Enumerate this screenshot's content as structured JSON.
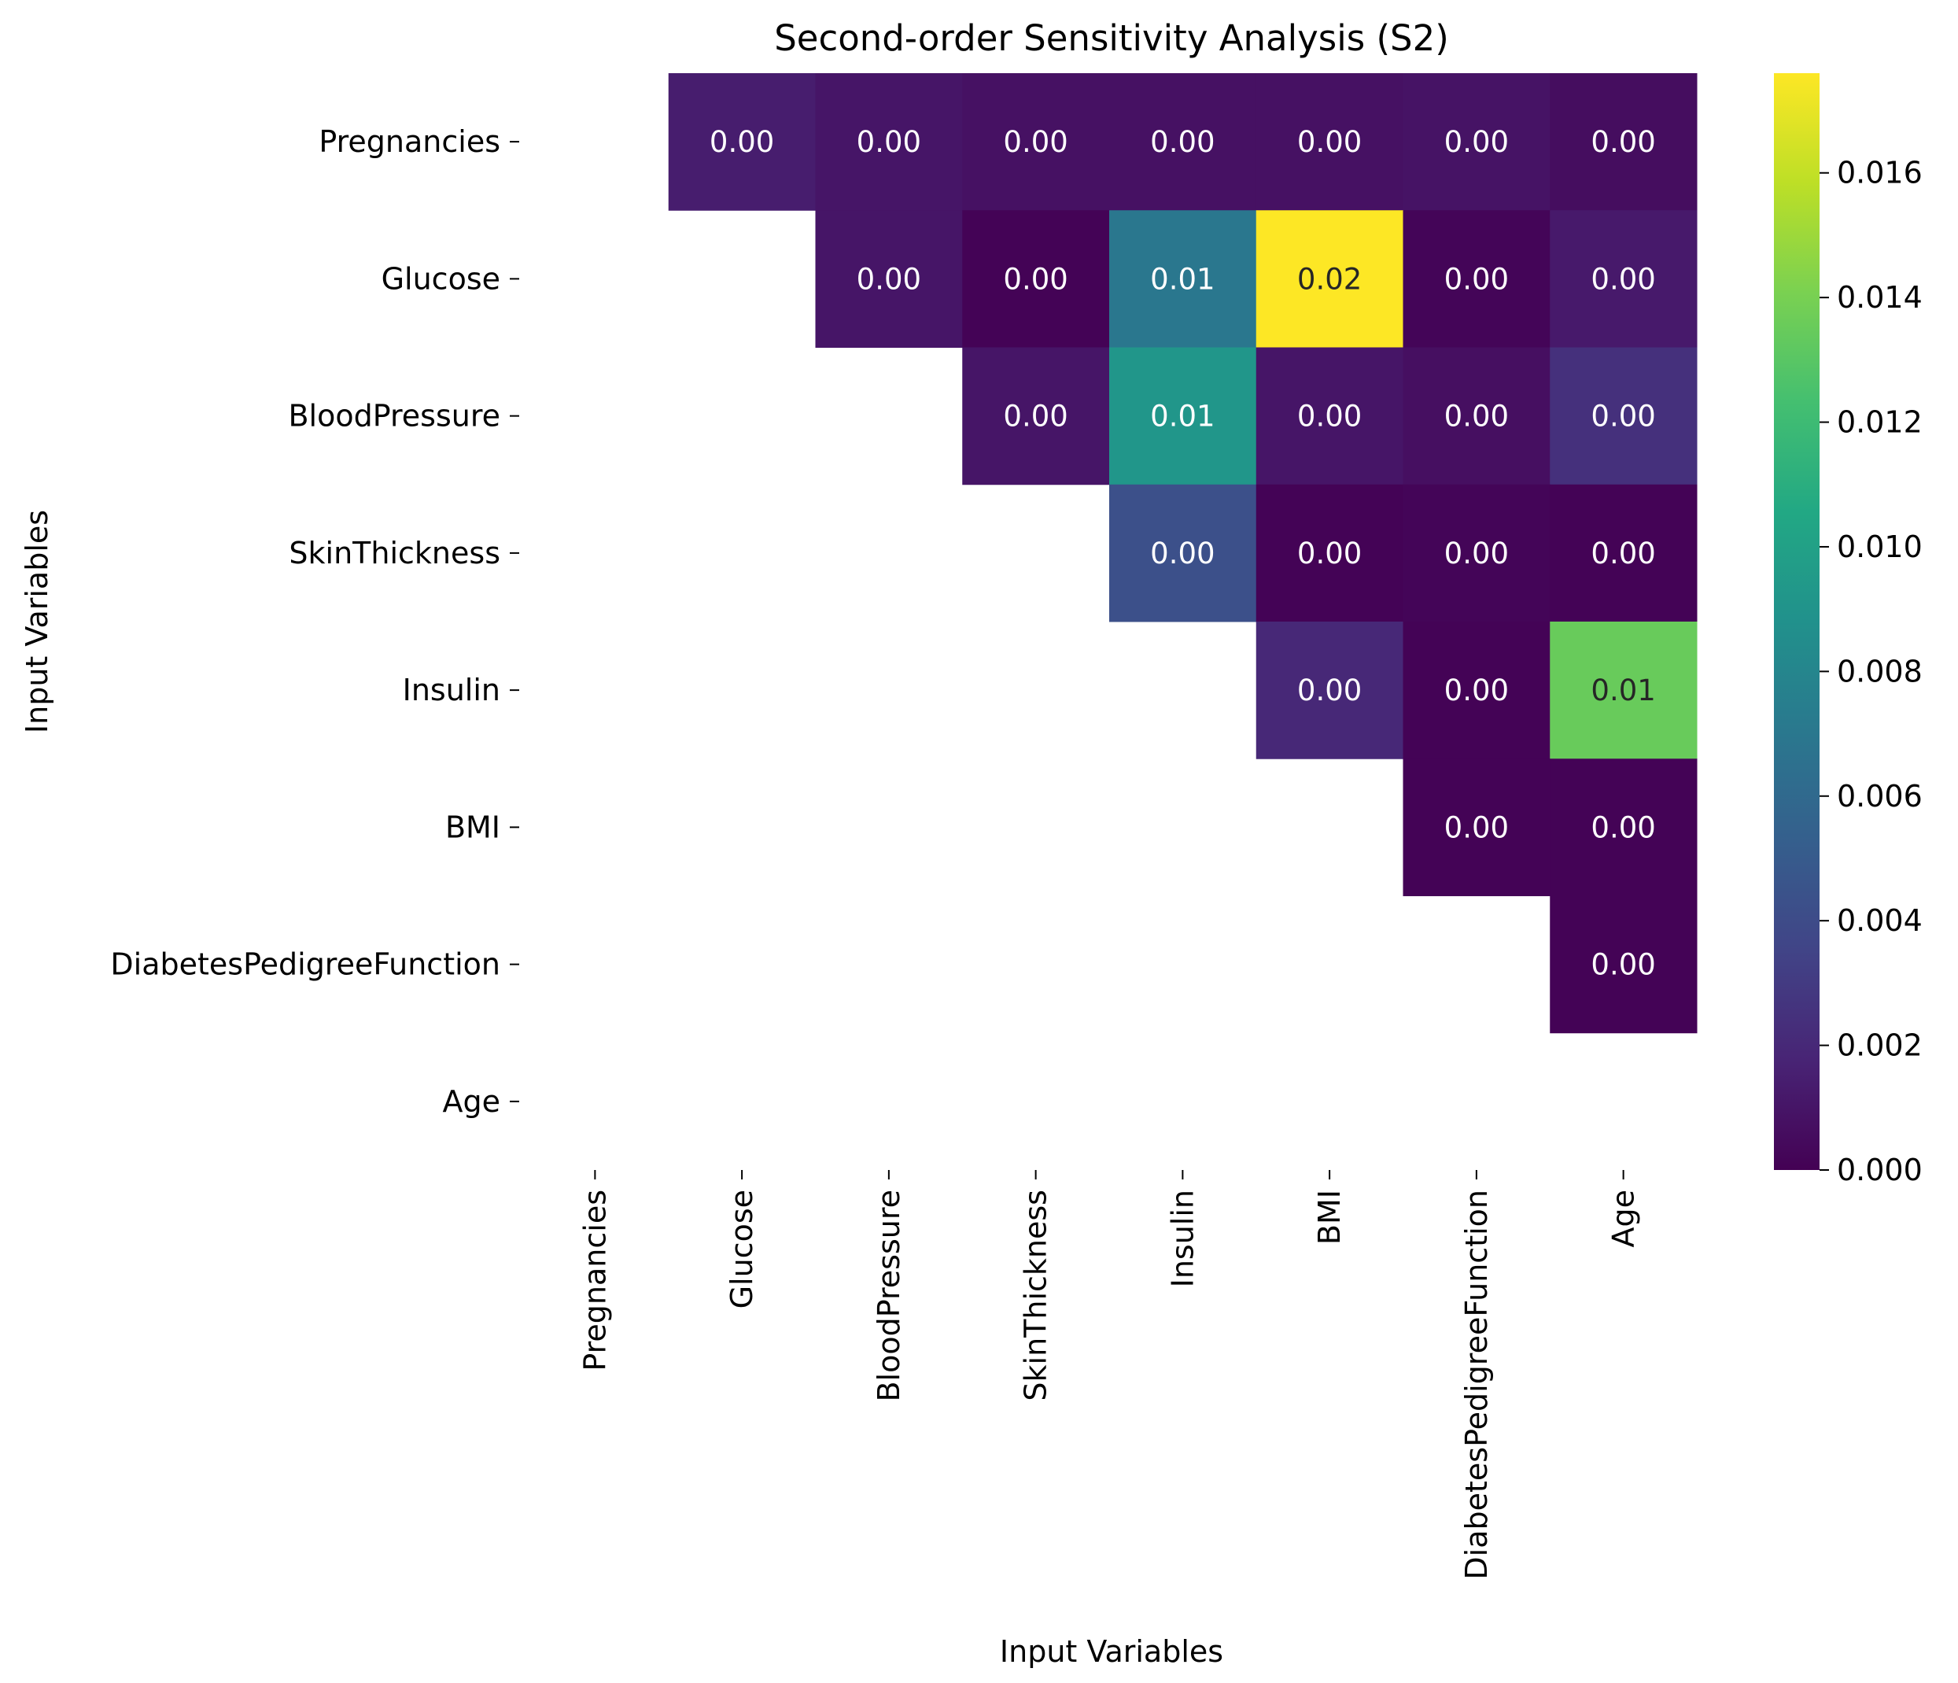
{
  "chart_data": {
    "type": "heatmap",
    "title": "Second-order Sensitivity Analysis (S2)",
    "xlabel": "Input Variables",
    "ylabel": "Input Variables",
    "rows": [
      "Pregnancies",
      "Glucose",
      "BloodPressure",
      "SkinThickness",
      "Insulin",
      "BMI",
      "DiabetesPedigreeFunction",
      "Age"
    ],
    "columns": [
      "Pregnancies",
      "Glucose",
      "BloodPressure",
      "SkinThickness",
      "Insulin",
      "BMI",
      "DiabetesPedigreeFunction",
      "Age"
    ],
    "values": [
      [
        null,
        0.0014,
        0.001,
        0.0008,
        0.0008,
        0.0008,
        0.0009,
        0.0006
      ],
      [
        null,
        null,
        0.001,
        0.0001,
        0.007,
        0.0176,
        0.0002,
        0.0012
      ],
      [
        null,
        null,
        null,
        0.001,
        0.0092,
        0.001,
        0.0007,
        0.0024
      ],
      [
        null,
        null,
        null,
        null,
        0.0043,
        0.0001,
        0.0002,
        0.0001
      ],
      [
        null,
        null,
        null,
        null,
        null,
        0.002,
        0.0001,
        0.0135
      ],
      [
        null,
        null,
        null,
        null,
        null,
        null,
        0.0001,
        0.0001
      ],
      [
        null,
        null,
        null,
        null,
        null,
        null,
        null,
        0.0001
      ],
      [
        null,
        null,
        null,
        null,
        null,
        null,
        null,
        null
      ]
    ],
    "annotations": [
      [
        null,
        "0.00",
        "0.00",
        "0.00",
        "0.00",
        "0.00",
        "0.00",
        "0.00"
      ],
      [
        null,
        null,
        "0.00",
        "0.00",
        "0.01",
        "0.02",
        "0.00",
        "0.00"
      ],
      [
        null,
        null,
        null,
        "0.00",
        "0.01",
        "0.00",
        "0.00",
        "0.00"
      ],
      [
        null,
        null,
        null,
        null,
        "0.00",
        "0.00",
        "0.00",
        "0.00"
      ],
      [
        null,
        null,
        null,
        null,
        null,
        "0.00",
        "0.00",
        "0.01"
      ],
      [
        null,
        null,
        null,
        null,
        null,
        null,
        "0.00",
        "0.00"
      ],
      [
        null,
        null,
        null,
        null,
        null,
        null,
        null,
        "0.00"
      ],
      [
        null,
        null,
        null,
        null,
        null,
        null,
        null,
        null
      ]
    ],
    "colormap": "viridis",
    "vmin": 0.0,
    "vmax": 0.0176,
    "colorbar_ticks": [
      "0.000",
      "0.002",
      "0.004",
      "0.006",
      "0.008",
      "0.010",
      "0.012",
      "0.014",
      "0.016"
    ],
    "colorbar_tick_values": [
      0.0,
      0.002,
      0.004,
      0.006,
      0.008,
      0.01,
      0.012,
      0.014,
      0.016
    ]
  }
}
